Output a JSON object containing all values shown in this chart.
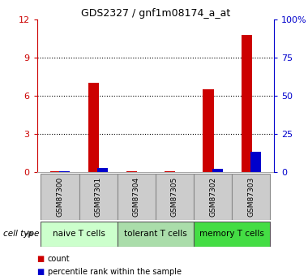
{
  "title": "GDS2327 / gnf1m08174_a_at",
  "samples": [
    "GSM87300",
    "GSM87301",
    "GSM87304",
    "GSM87305",
    "GSM87302",
    "GSM87303"
  ],
  "count_values": [
    0.05,
    7.0,
    0.05,
    0.05,
    6.5,
    10.8
  ],
  "percentile_values": [
    0.5,
    2.5,
    0.05,
    0.05,
    2.0,
    13.5
  ],
  "left_ylim": [
    0,
    12
  ],
  "right_ylim": [
    0,
    100
  ],
  "left_yticks": [
    0,
    3,
    6,
    9,
    12
  ],
  "right_yticks": [
    0,
    25,
    50,
    75,
    100
  ],
  "left_tick_labels": [
    "0",
    "3",
    "6",
    "9",
    "12"
  ],
  "right_tick_labels": [
    "0",
    "25",
    "50",
    "75",
    "100%"
  ],
  "left_color": "#cc0000",
  "right_color": "#0000cc",
  "groups": [
    {
      "label": "naive T cells",
      "indices": [
        0,
        1
      ],
      "color": "#ccffcc"
    },
    {
      "label": "tolerant T cells",
      "indices": [
        2,
        3
      ],
      "color": "#aaddaa"
    },
    {
      "label": "memory T cells",
      "indices": [
        4,
        5
      ],
      "color": "#44dd44"
    }
  ],
  "cell_type_label": "cell type",
  "legend_count": "count",
  "legend_percentile": "percentile rank within the sample",
  "sample_box_color": "#cccccc",
  "grid_ticks": [
    3,
    6,
    9
  ]
}
